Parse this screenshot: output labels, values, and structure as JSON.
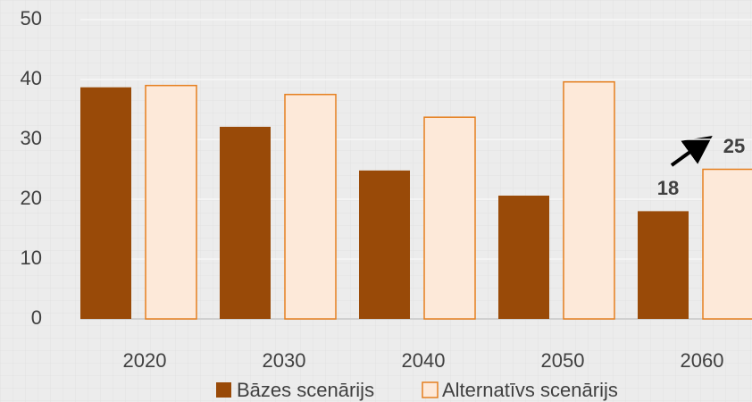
{
  "chart_data": {
    "type": "bar",
    "categories": [
      "2020",
      "2030",
      "2040",
      "2050",
      "2060"
    ],
    "series": [
      {
        "name": "Bāzes scenārijs",
        "color": "#994a08",
        "values": [
          38.7,
          32.1,
          24.8,
          20.6,
          18
        ]
      },
      {
        "name": "Alternatīvs scenārijs",
        "color": "#fde9d9",
        "values": [
          39.0,
          37.5,
          33.7,
          39.6,
          25
        ]
      }
    ],
    "ylim": [
      0,
      50
    ],
    "yticks": [
      0,
      10,
      20,
      30,
      40,
      50
    ],
    "grid": true
  }
}
